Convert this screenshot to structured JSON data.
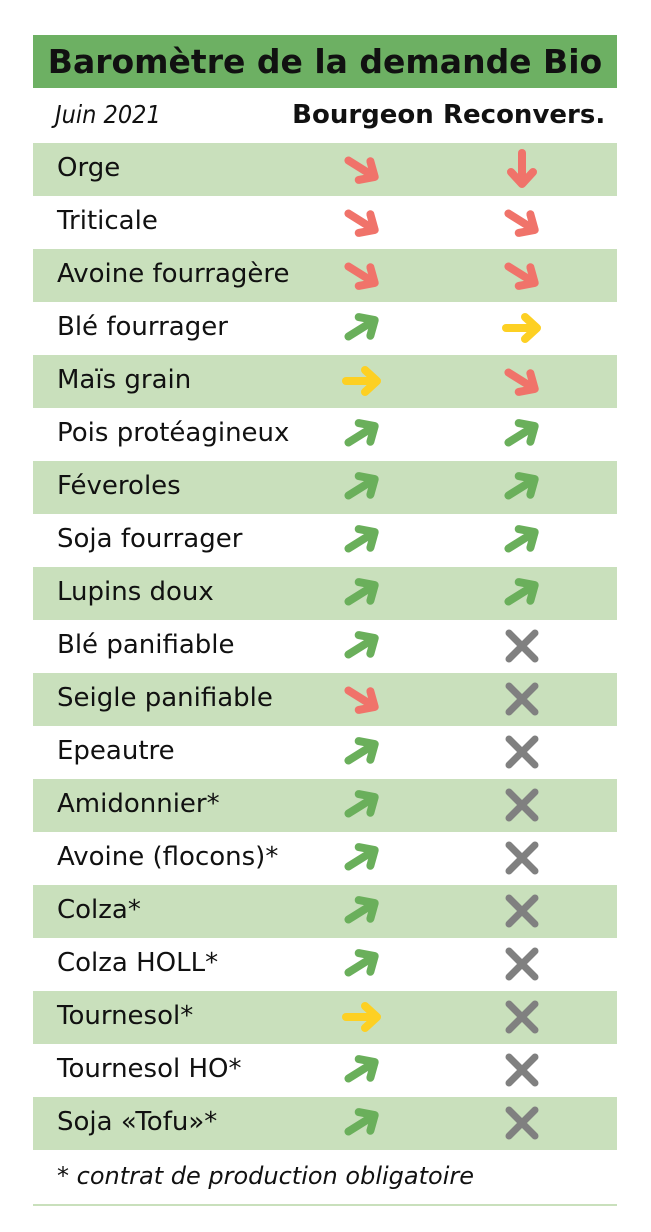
{
  "title": "Baromètre de la demande Bio",
  "header": {
    "date": "Juin 2021",
    "col1": "Bourgeon",
    "col2": "Reconvers."
  },
  "colors": {
    "title_bg": "#6db063",
    "stripe": "#c9e0bc",
    "down": "#f0736a",
    "up": "#6aaf5b",
    "stable": "#fdd023",
    "none": "#808080"
  },
  "rows": [
    {
      "name": "Orge",
      "bourgeon": "down-right",
      "reconvers": "down"
    },
    {
      "name": "Triticale",
      "bourgeon": "down-right",
      "reconvers": "down-right"
    },
    {
      "name": "Avoine fourragère",
      "bourgeon": "down-right",
      "reconvers": "down-right"
    },
    {
      "name": "Blé fourrager",
      "bourgeon": "up-right",
      "reconvers": "right"
    },
    {
      "name": "Maïs grain",
      "bourgeon": "right",
      "reconvers": "down-right"
    },
    {
      "name": "Pois protéagineux",
      "bourgeon": "up-right",
      "reconvers": "up-right"
    },
    {
      "name": "Féveroles",
      "bourgeon": "up-right",
      "reconvers": "up-right"
    },
    {
      "name": "Soja fourrager",
      "bourgeon": "up-right",
      "reconvers": "up-right"
    },
    {
      "name": "Lupins doux",
      "bourgeon": "up-right",
      "reconvers": "up-right"
    },
    {
      "name": "Blé panifiable",
      "bourgeon": "up-right",
      "reconvers": "cross"
    },
    {
      "name": "Seigle panifiable",
      "bourgeon": "down-right",
      "reconvers": "cross"
    },
    {
      "name": "Epeautre",
      "bourgeon": "up-right",
      "reconvers": "cross"
    },
    {
      "name": "Amidonnier*",
      "bourgeon": "up-right",
      "reconvers": "cross"
    },
    {
      "name": "Avoine (flocons)*",
      "bourgeon": "up-right",
      "reconvers": "cross"
    },
    {
      "name": "Colza*",
      "bourgeon": "up-right",
      "reconvers": "cross"
    },
    {
      "name": "Colza HOLL*",
      "bourgeon": "up-right",
      "reconvers": "cross"
    },
    {
      "name": "Tournesol*",
      "bourgeon": "right",
      "reconvers": "cross"
    },
    {
      "name": "Tournesol HO*",
      "bourgeon": "up-right",
      "reconvers": "cross"
    },
    {
      "name": "Soja «Tofu»*",
      "bourgeon": "up-right",
      "reconvers": "cross"
    }
  ],
  "footnote": "* contrat de production obligatoire"
}
